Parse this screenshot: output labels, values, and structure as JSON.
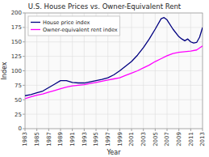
{
  "chart_data": {
    "type": "line",
    "title": "U.S. House Prices vs. Owner-Equivalent Rent",
    "x_label": "Year",
    "y_label": "Index",
    "xlim": [
      1983,
      2013
    ],
    "ylim": [
      0,
      200
    ],
    "xticks": [
      1983,
      1985,
      1987,
      1989,
      1991,
      1993,
      1995,
      1997,
      1999,
      2001,
      2003,
      2005,
      2007,
      2009,
      2011,
      2013
    ],
    "yticks": [
      0,
      25,
      50,
      75,
      100,
      125,
      150,
      175,
      200
    ],
    "grid": true,
    "legend": "upper-left",
    "series": [
      {
        "name": "House price index",
        "color": "#000080",
        "x": [
          1983,
          1984,
          1985,
          1986,
          1987,
          1988,
          1989,
          1990,
          1991,
          1992,
          1993,
          1994,
          1995,
          1996,
          1997,
          1998,
          1999,
          2000,
          2001,
          2002,
          2003,
          2004,
          2005,
          2006,
          2006.5,
          2007,
          2008,
          2009,
          2009.5,
          2010,
          2010.5,
          2011,
          2011.5,
          2012,
          2012.5,
          2013
        ],
        "values": [
          57,
          59,
          62,
          65,
          71,
          77,
          83,
          83,
          80,
          79,
          79,
          81,
          83,
          85,
          88,
          93,
          100,
          108,
          116,
          127,
          140,
          155,
          172,
          190,
          192,
          188,
          172,
          159,
          155,
          152,
          155,
          150,
          148,
          149,
          158,
          175
        ]
      },
      {
        "name": "Owner-equivalent rent index",
        "color": "#FF00FF",
        "x": [
          1983,
          1984,
          1985,
          1986,
          1987,
          1988,
          1989,
          1990,
          1991,
          1992,
          1993,
          1994,
          1995,
          1996,
          1997,
          1998,
          1999,
          2000,
          2001,
          2002,
          2003,
          2004,
          2005,
          2006,
          2007,
          2008,
          2009,
          2010,
          2011,
          2012,
          2013
        ],
        "values": [
          52,
          55,
          58,
          60,
          63,
          66,
          69,
          72,
          74,
          75,
          76,
          78,
          80,
          82,
          84,
          86,
          88,
          92,
          96,
          100,
          105,
          110,
          116,
          121,
          126,
          130,
          132,
          133,
          134,
          136,
          143
        ]
      }
    ]
  }
}
